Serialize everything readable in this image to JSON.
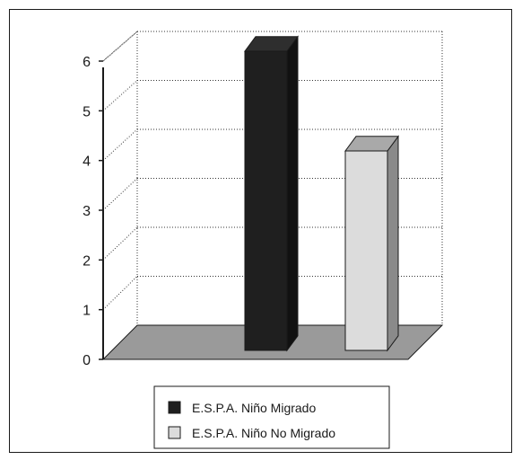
{
  "chart_data": {
    "type": "bar",
    "style": "3d-column",
    "categories": [
      "E.S.P.A. Niño Migrado",
      "E.S.P.A. Niño No Migrado"
    ],
    "values": [
      6,
      4
    ],
    "ylim": [
      0,
      6
    ],
    "yticks": [
      "0",
      "1",
      "2",
      "3",
      "4",
      "5",
      "6"
    ],
    "grid": true,
    "legend_position": "bottom",
    "colors": {
      "bar1_front": "#1f1f1f",
      "bar1_side": "#111111",
      "bar1_top": "#2e2e2e",
      "bar2_front": "#dcdcdc",
      "bar2_side": "#8a8a8a",
      "bar2_top": "#a9a9a9",
      "floor": "#9a9a9a"
    }
  }
}
